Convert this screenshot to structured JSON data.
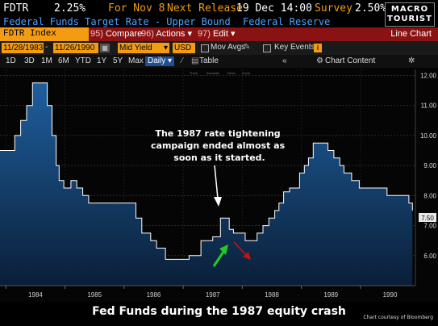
{
  "header": {
    "ticker": "FDTR",
    "value": "2.25%",
    "for_text": "For Nov 8",
    "next_release_label": "Next Release",
    "next_release_value": "19 Dec 14:00",
    "survey_label": "Survey",
    "survey_value": "2.50%",
    "logo_line1": "MACRO",
    "logo_line2": "TOURIST"
  },
  "subheader": {
    "name": "Federal Funds Target Rate - Upper Bound",
    "source": "Federal Reserve"
  },
  "toolbar": {
    "security": "FDTR Index",
    "compare": "Compare",
    "compare_code": "95)",
    "actions": "Actions",
    "actions_code": "96)",
    "edit": "Edit",
    "edit_code": "97)",
    "view_type": "Line Chart"
  },
  "range_bar": {
    "start_date": "11/28/1983",
    "end_date": "11/26/1990",
    "field": "Mid Yield",
    "currency": "USD",
    "mov_avgs": "Mov Avgs",
    "key_events": "Key Events"
  },
  "period_bar": {
    "periods": [
      "1D",
      "3D",
      "1M",
      "6M",
      "YTD",
      "1Y",
      "5Y",
      "Max"
    ],
    "frequency": "Daily",
    "table": "Table",
    "chart_content": "Chart Content",
    "mini_tools": [
      "Track",
      "Annotate",
      "News",
      "Zoom"
    ]
  },
  "chart_data": {
    "type": "area",
    "series": [
      {
        "points": [
          [
            1983.9,
            9.5
          ],
          [
            1984.05,
            9.5
          ],
          [
            1984.15,
            10.0
          ],
          [
            1984.25,
            10.5
          ],
          [
            1984.35,
            11.0
          ],
          [
            1984.45,
            11.75
          ],
          [
            1984.55,
            11.75
          ],
          [
            1984.7,
            11.0
          ],
          [
            1984.78,
            10.0
          ],
          [
            1984.85,
            9.0
          ],
          [
            1984.9,
            8.5
          ],
          [
            1984.98,
            8.25
          ],
          [
            1985.1,
            8.5
          ],
          [
            1985.2,
            8.25
          ],
          [
            1985.3,
            8.0
          ],
          [
            1985.4,
            7.75
          ],
          [
            1985.5,
            7.75
          ],
          [
            1985.7,
            7.75
          ],
          [
            1985.9,
            7.75
          ],
          [
            1986.1,
            7.75
          ],
          [
            1986.2,
            7.25
          ],
          [
            1986.3,
            6.75
          ],
          [
            1986.45,
            6.5
          ],
          [
            1986.55,
            6.25
          ],
          [
            1986.7,
            5.875
          ],
          [
            1986.8,
            5.875
          ],
          [
            1987.0,
            5.875
          ],
          [
            1987.1,
            6.0
          ],
          [
            1987.2,
            6.0
          ],
          [
            1987.3,
            6.5
          ],
          [
            1987.5,
            6.625
          ],
          [
            1987.63,
            7.25
          ],
          [
            1987.72,
            7.25
          ],
          [
            1987.78,
            6.875
          ],
          [
            1987.85,
            6.75
          ],
          [
            1987.95,
            6.75
          ],
          [
            1988.05,
            6.5
          ],
          [
            1988.15,
            6.5
          ],
          [
            1988.25,
            6.75
          ],
          [
            1988.35,
            7.0
          ],
          [
            1988.45,
            7.25
          ],
          [
            1988.55,
            7.5
          ],
          [
            1988.62,
            7.75
          ],
          [
            1988.7,
            8.125
          ],
          [
            1988.8,
            8.25
          ],
          [
            1988.9,
            8.25
          ],
          [
            1988.97,
            8.75
          ],
          [
            1989.05,
            9.0
          ],
          [
            1989.12,
            9.25
          ],
          [
            1989.2,
            9.75
          ],
          [
            1989.35,
            9.75
          ],
          [
            1989.45,
            9.5
          ],
          [
            1989.55,
            9.25
          ],
          [
            1989.65,
            9.0
          ],
          [
            1989.72,
            8.75
          ],
          [
            1989.85,
            8.5
          ],
          [
            1989.98,
            8.25
          ],
          [
            1990.1,
            8.25
          ],
          [
            1990.3,
            8.25
          ],
          [
            1990.45,
            8.0
          ],
          [
            1990.6,
            8.0
          ],
          [
            1990.75,
            8.0
          ],
          [
            1990.82,
            7.75
          ],
          [
            1990.88,
            7.5
          ]
        ]
      }
    ],
    "x_ticks": [
      "1984",
      "1985",
      "1986",
      "1987",
      "1988",
      "1989",
      "1990"
    ],
    "y_ticks": [
      "6.00",
      "7.00",
      "8.00",
      "9.00",
      "10.00",
      "11.00",
      "12.00"
    ],
    "last_value_label": "7.50",
    "ylim": [
      5.0,
      12.2
    ],
    "xlim": [
      1983.9,
      1990.93
    ],
    "annotation": "The 1987 rate tightening campaign ended almost as soon as it started.",
    "annotation_lines": [
      "The 1987 rate tightening",
      "campaign ended almost as",
      "soon as it started."
    ],
    "caption": "Fed Funds during the 1987 equity crash",
    "credit": "Chart courtesy of Bloomberg",
    "colors": {
      "fill_top": "#1e5f9e",
      "fill_bottom": "#0a1f38",
      "line": "#ffffff",
      "up_arrow": "#22cc22",
      "down_arrow": "#cc1111"
    }
  }
}
